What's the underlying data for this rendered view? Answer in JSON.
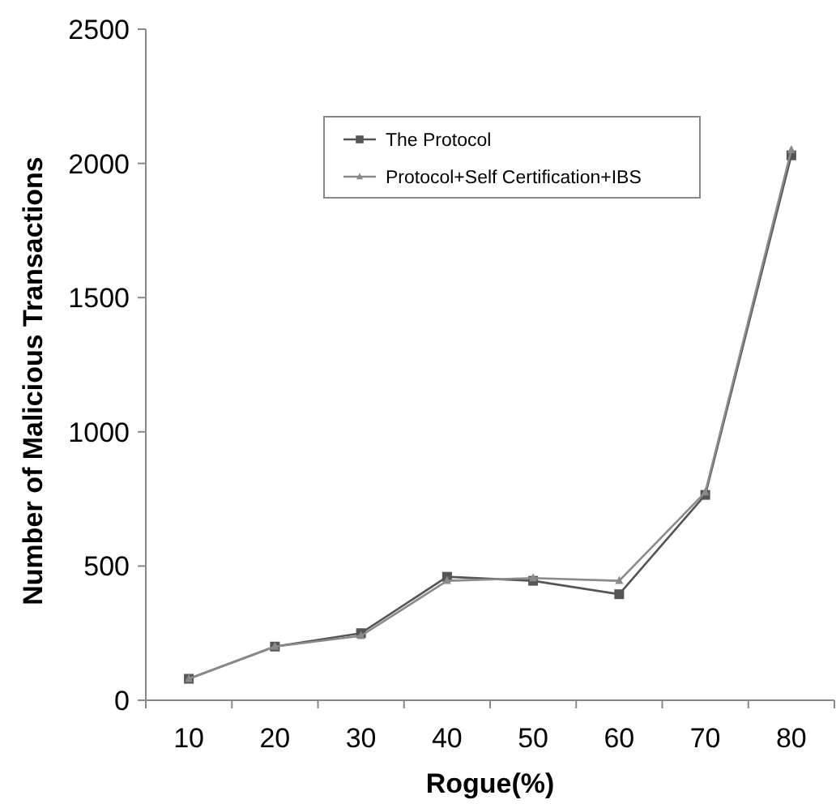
{
  "chart_data": {
    "type": "line",
    "xlabel": "Rogue(%)",
    "ylabel": "Number of Malicious Transactions",
    "categories": [
      "10",
      "20",
      "30",
      "40",
      "50",
      "60",
      "70",
      "80"
    ],
    "series": [
      {
        "name": "The Protocol",
        "color": "#555555",
        "marker": "square",
        "values": [
          80,
          200,
          250,
          460,
          445,
          395,
          765,
          2030
        ]
      },
      {
        "name": "Protocol+Self Certification+IBS",
        "color": "#8a8a8a",
        "marker": "triangle",
        "values": [
          80,
          200,
          240,
          445,
          455,
          445,
          775,
          2050
        ]
      }
    ],
    "ylim": [
      0,
      2500
    ],
    "yticks": [
      0,
      500,
      1000,
      1500,
      2000,
      2500
    ],
    "grid": false,
    "legend": "top",
    "line_style": "solid"
  }
}
